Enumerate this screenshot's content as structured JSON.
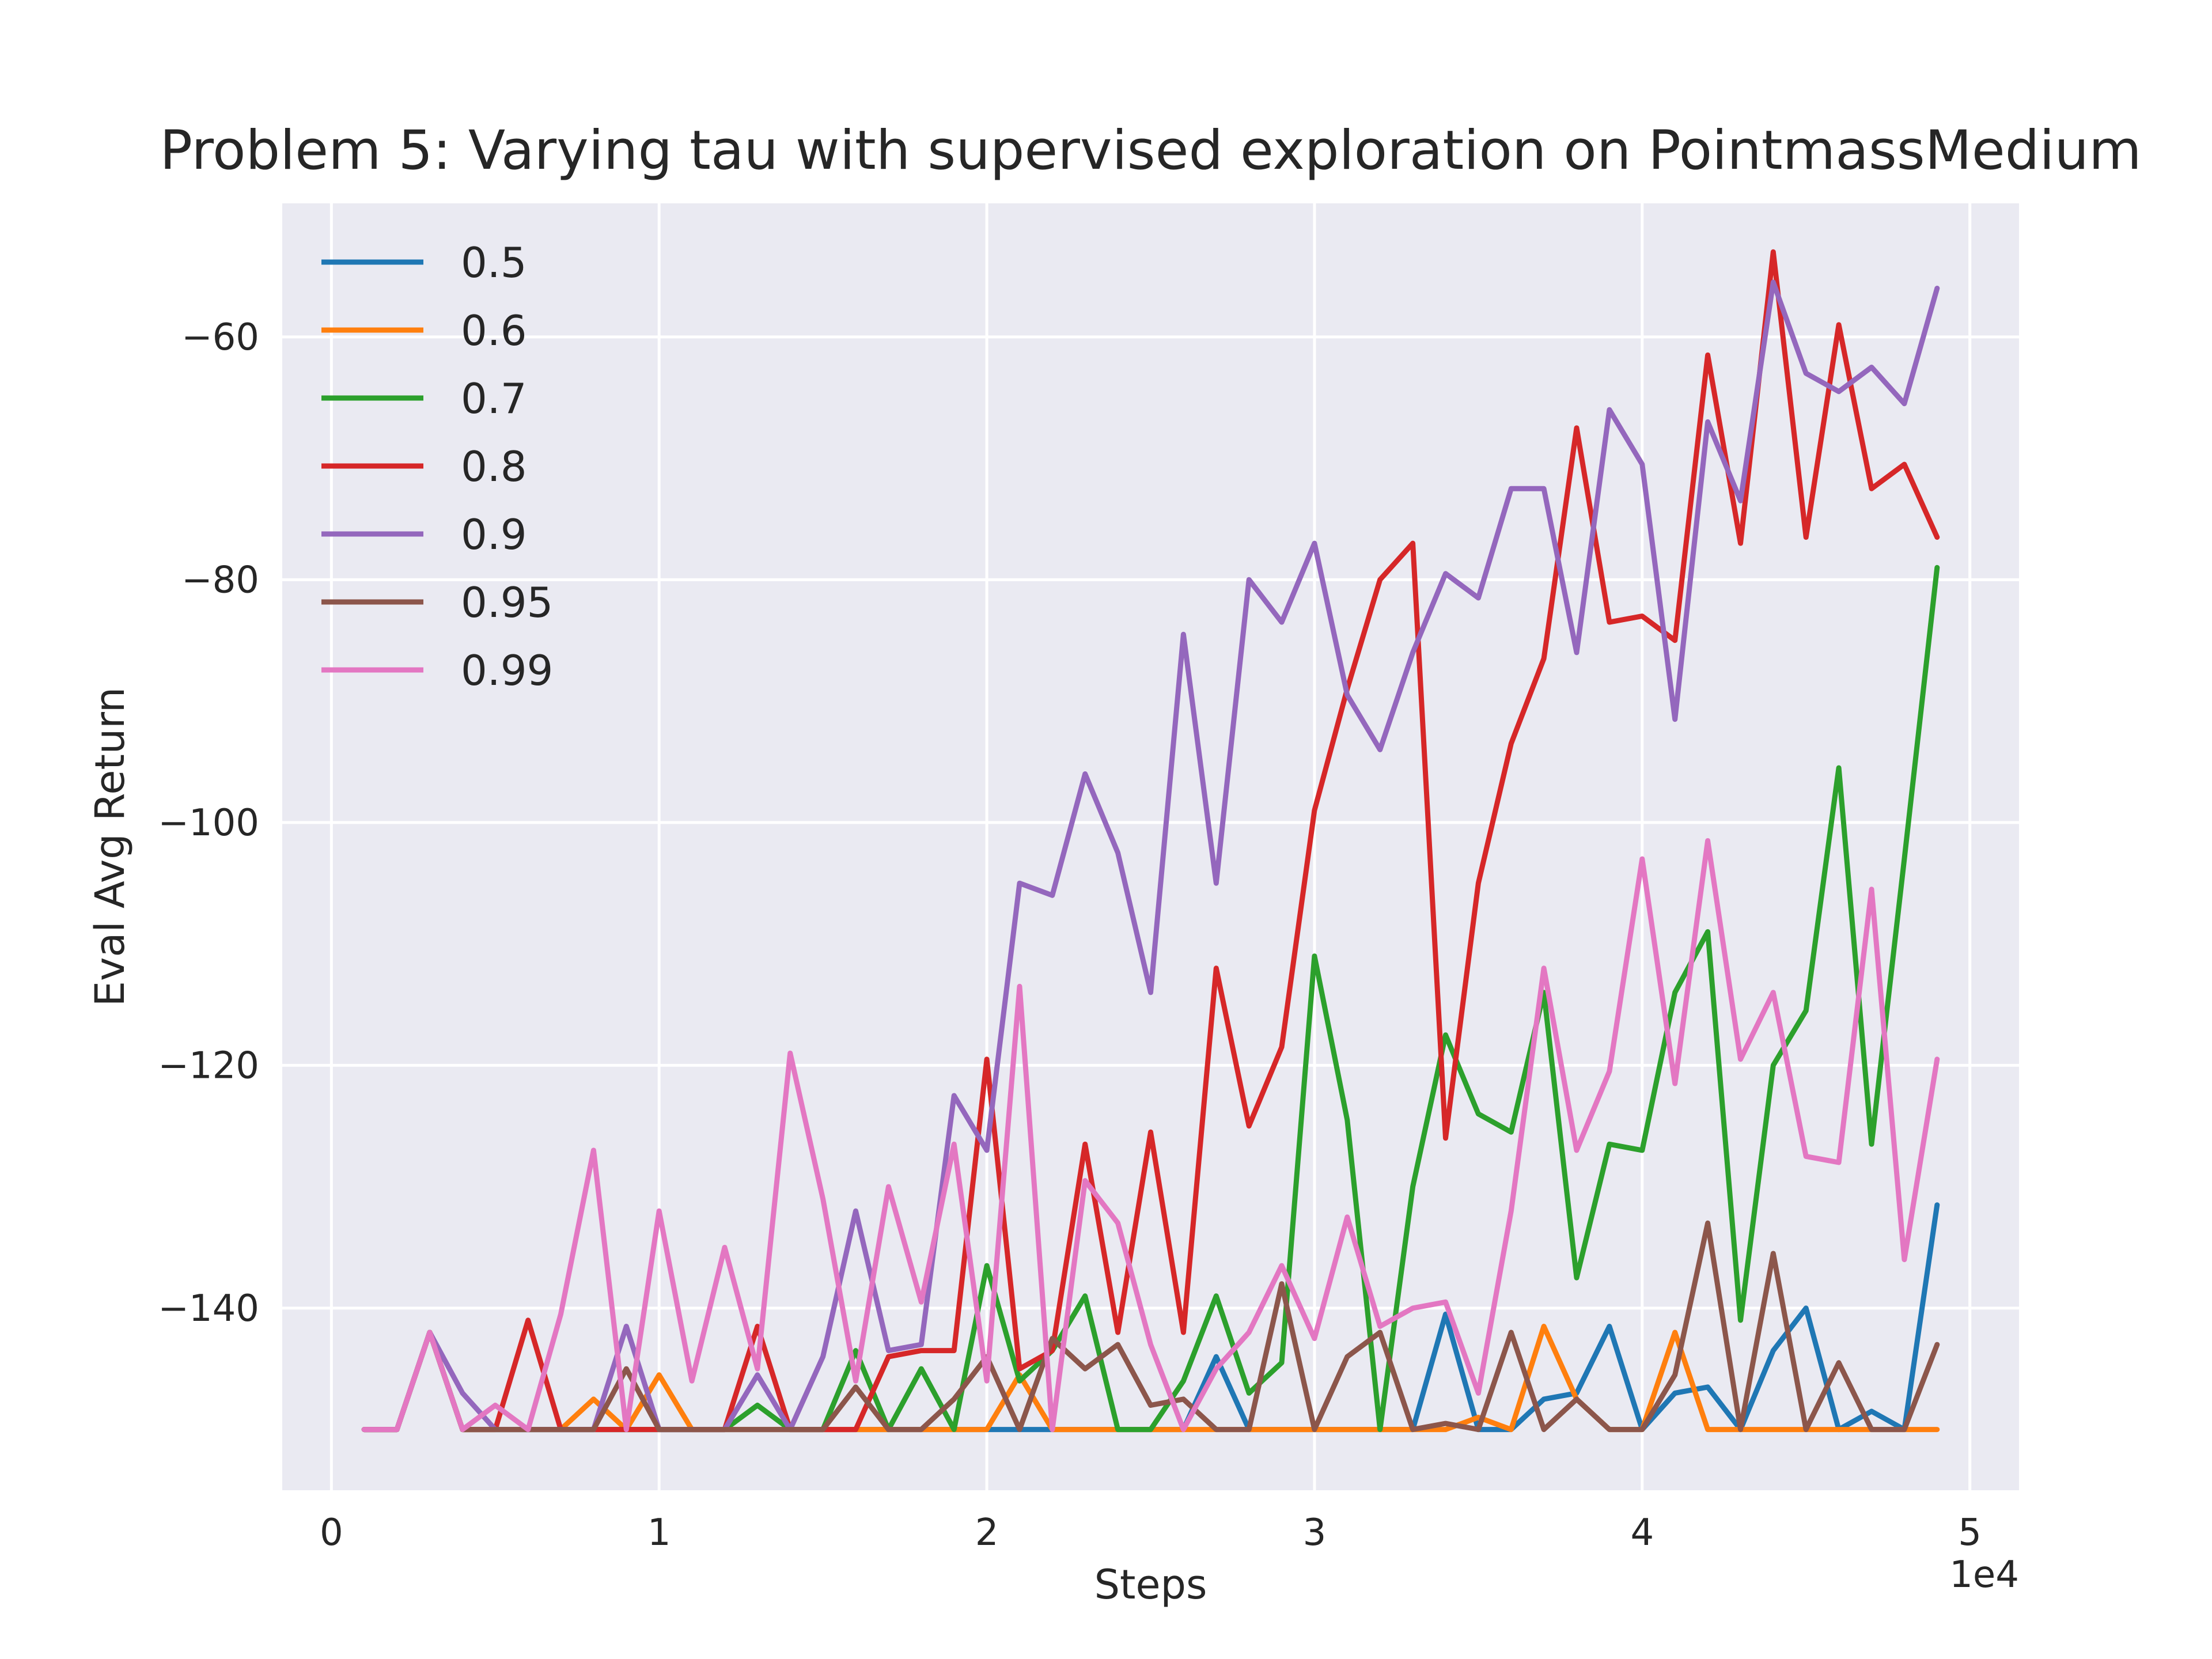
{
  "chart_data": {
    "type": "line",
    "title": "Problem 5: Varying tau with supervised exploration on PointmassMedium",
    "xlabel": "Steps",
    "ylabel": "Eval Avg Return",
    "x_offset_label": "1e4",
    "xlim": [
      -1500,
      51500
    ],
    "ylim": [
      -155,
      -49
    ],
    "xticks": [
      0,
      10000,
      20000,
      30000,
      40000,
      50000
    ],
    "xtick_labels": [
      "0",
      "1",
      "2",
      "3",
      "4",
      "5"
    ],
    "yticks": [
      -140,
      -120,
      -100,
      -80,
      -60
    ],
    "ytick_labels": [
      "−140",
      "−120",
      "−100",
      "−80",
      "−60"
    ],
    "grid": true,
    "legend_position": "top-left",
    "x": [
      1000,
      2000,
      3000,
      4000,
      5000,
      6000,
      7000,
      8000,
      9000,
      10000,
      11000,
      12000,
      13000,
      14000,
      15000,
      16000,
      17000,
      18000,
      19000,
      20000,
      21000,
      22000,
      23000,
      24000,
      25000,
      26000,
      27000,
      28000,
      29000,
      30000,
      31000,
      32000,
      33000,
      34000,
      35000,
      36000,
      37000,
      38000,
      39000,
      40000,
      41000,
      42000,
      43000,
      44000,
      45000,
      46000,
      47000,
      48000,
      49000
    ],
    "series": [
      {
        "name": "0.5",
        "color": "#1f77b4",
        "values": [
          -150,
          -150,
          -142,
          -150,
          -150,
          -150,
          -150,
          -150,
          -150,
          -150,
          -150,
          -150,
          -150,
          -150,
          -150,
          -150,
          -150,
          -150,
          -150,
          -150,
          -150,
          -150,
          -150,
          -150,
          -150,
          -150,
          -144,
          -150,
          -150,
          -150,
          -150,
          -150,
          -150,
          -140.5,
          -150,
          -150,
          -147.5,
          -147,
          -141.5,
          -150,
          -147,
          -146.5,
          -150,
          -143.5,
          -140,
          -150,
          -148.5,
          -150,
          -131.5
        ]
      },
      {
        "name": "0.6",
        "color": "#ff7f0e",
        "values": [
          -150,
          -150,
          -142,
          -150,
          -150,
          -150,
          -150,
          -147.5,
          -150,
          -145.5,
          -150,
          -150,
          -150,
          -150,
          -150,
          -150,
          -150,
          -150,
          -150,
          -150,
          -145.5,
          -150,
          -150,
          -150,
          -150,
          -150,
          -150,
          -150,
          -150,
          -150,
          -150,
          -150,
          -150,
          -150,
          -149,
          -150,
          -141.5,
          -147.5,
          -150,
          -150,
          -142,
          -150,
          -150,
          -150,
          -150,
          -150,
          -150,
          -150,
          -150
        ]
      },
      {
        "name": "0.7",
        "color": "#2ca02c",
        "values": [
          -150,
          -150,
          -142,
          -150,
          -150,
          -150,
          -150,
          -150,
          -150,
          -150,
          -150,
          -150,
          -148,
          -150,
          -150,
          -143.5,
          -150,
          -145,
          -150,
          -136.5,
          -146,
          -143.5,
          -139,
          -150,
          -150,
          -146,
          -139,
          -147,
          -144.5,
          -111,
          -124.5,
          -150,
          -130,
          -117.5,
          -124,
          -125.5,
          -114,
          -137.5,
          -126.5,
          -127,
          -114,
          -109,
          -141,
          -120,
          -115.5,
          -95.5,
          -126.5,
          -103,
          -79
        ]
      },
      {
        "name": "0.8",
        "color": "#d62728",
        "values": [
          -150,
          -150,
          -142,
          -150,
          -150,
          -141,
          -150,
          -150,
          -150,
          -150,
          -150,
          -150,
          -141.5,
          -150,
          -150,
          -150,
          -144,
          -143.5,
          -143.5,
          -119.5,
          -145,
          -143.5,
          -126.5,
          -142,
          -125.5,
          -142,
          -112,
          -125,
          -118.5,
          -99,
          -89,
          -80,
          -77,
          -126,
          -105,
          -93.5,
          -86.5,
          -67.5,
          -83.5,
          -83,
          -85,
          -61.5,
          -77,
          -53,
          -76.5,
          -59,
          -72.5,
          -70.5,
          -76.5
        ]
      },
      {
        "name": "0.9",
        "color": "#9467bd",
        "values": [
          -150,
          -150,
          -142,
          -147,
          -150,
          -150,
          -150,
          -150,
          -141.5,
          -150,
          -150,
          -150,
          -145.5,
          -150,
          -144,
          -132,
          -143.5,
          -143,
          -122.5,
          -127,
          -105,
          -106,
          -96,
          -102.5,
          -114,
          -84.5,
          -105,
          -80,
          -83.5,
          -77,
          -89.5,
          -94,
          -86,
          -79.5,
          -81.5,
          -72.5,
          -72.5,
          -86,
          -66,
          -70.5,
          -91.5,
          -67,
          -73.5,
          -55.5,
          -63,
          -64.5,
          -62.5,
          -65.5,
          -56
        ]
      },
      {
        "name": "0.95",
        "color": "#8c564b",
        "values": [
          -150,
          -150,
          -142,
          -150,
          -150,
          -150,
          -150,
          -150,
          -145,
          -150,
          -150,
          -150,
          -150,
          -150,
          -150,
          -146.5,
          -150,
          -150,
          -147.5,
          -144,
          -150,
          -142.5,
          -145,
          -143,
          -148,
          -147.5,
          -150,
          -150,
          -138,
          -150,
          -144,
          -142,
          -150,
          -149.5,
          -150,
          -142,
          -150,
          -147.5,
          -150,
          -150,
          -145.5,
          -133,
          -150,
          -135.5,
          -150,
          -144.5,
          -150,
          -150,
          -143
        ]
      },
      {
        "name": "0.99",
        "color": "#e377c2",
        "values": [
          -150,
          -150,
          -142,
          -150,
          -148,
          -150,
          -140.5,
          -127,
          -150,
          -132,
          -146,
          -135,
          -145,
          -119,
          -131,
          -146,
          -130,
          -139.5,
          -126.5,
          -146,
          -113.5,
          -150,
          -129.5,
          -133,
          -143,
          -150,
          -145,
          -142,
          -136.5,
          -142.5,
          -132.5,
          -141.5,
          -140,
          -139.5,
          -147,
          -132,
          -112,
          -127,
          -120.5,
          -103,
          -121.5,
          -101.5,
          -119.5,
          -114,
          -127.5,
          -128,
          -105.5,
          -136,
          -119.5
        ]
      }
    ]
  }
}
